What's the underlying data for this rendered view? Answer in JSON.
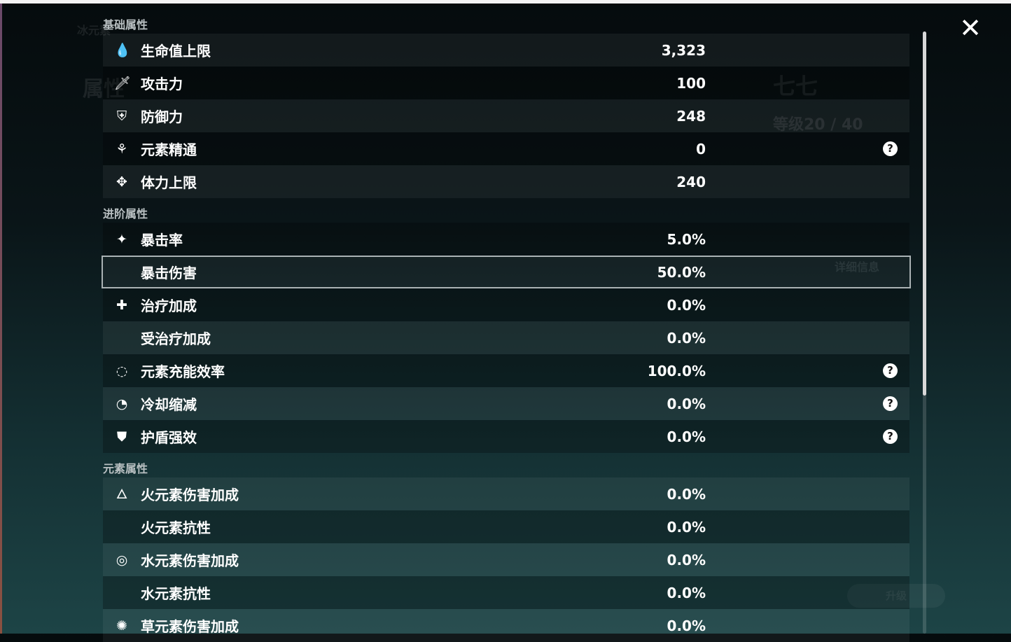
{
  "background": {
    "element_tab": "冰元素",
    "attr_title": "属性",
    "char_name": "七七",
    "level": "等级20 / 40",
    "detail_button": "详细信息",
    "upgrade_button": "升级"
  },
  "close_icon": "close-x-icon",
  "sections": [
    {
      "title": "基础属性",
      "rows": [
        {
          "icon": "hp-drop-icon",
          "glyph": "💧",
          "label": "生命值上限",
          "value": "3,323",
          "help": false
        },
        {
          "icon": "sword-icon",
          "glyph": "🗡",
          "label": "攻击力",
          "value": "100",
          "help": false
        },
        {
          "icon": "shield-icon",
          "glyph": "⛨",
          "label": "防御力",
          "value": "248",
          "help": false
        },
        {
          "icon": "elemental-mastery-icon",
          "glyph": "⚘",
          "label": "元素精通",
          "value": "0",
          "help": true
        },
        {
          "icon": "stamina-icon",
          "glyph": "✥",
          "label": "体力上限",
          "value": "240",
          "help": false
        }
      ]
    },
    {
      "title": "进阶属性",
      "rows": [
        {
          "icon": "crit-rate-icon",
          "glyph": "✦",
          "label": "暴击率",
          "value": "5.0%",
          "help": false
        },
        {
          "icon": "crit-dmg-icon",
          "glyph": "",
          "label": "暴击伤害",
          "value": "50.0%",
          "help": false,
          "selected": true
        },
        {
          "icon": "healing-cross-icon",
          "glyph": "✚",
          "label": "治疗加成",
          "value": "0.0%",
          "help": false
        },
        {
          "icon": "",
          "glyph": "",
          "label": "受治疗加成",
          "value": "0.0%",
          "help": false
        },
        {
          "icon": "energy-recharge-icon",
          "glyph": "◌",
          "label": "元素充能效率",
          "value": "100.0%",
          "help": true
        },
        {
          "icon": "cooldown-icon",
          "glyph": "◔",
          "label": "冷却缩减",
          "value": "0.0%",
          "help": true
        },
        {
          "icon": "shield-strength-icon",
          "glyph": "⛊",
          "label": "护盾强效",
          "value": "0.0%",
          "help": true
        }
      ]
    },
    {
      "title": "元素属性",
      "rows": [
        {
          "icon": "pyro-icon",
          "glyph": "🜂",
          "label": "火元素伤害加成",
          "value": "0.0%",
          "help": false
        },
        {
          "icon": "",
          "glyph": "",
          "label": "火元素抗性",
          "value": "0.0%",
          "help": false
        },
        {
          "icon": "hydro-icon",
          "glyph": "◎",
          "label": "水元素伤害加成",
          "value": "0.0%",
          "help": false
        },
        {
          "icon": "",
          "glyph": "",
          "label": "水元素抗性",
          "value": "0.0%",
          "help": false
        },
        {
          "icon": "dendro-icon",
          "glyph": "✺",
          "label": "草元素伤害加成",
          "value": "0.0%",
          "help": false
        }
      ]
    }
  ],
  "help_glyph": "?"
}
